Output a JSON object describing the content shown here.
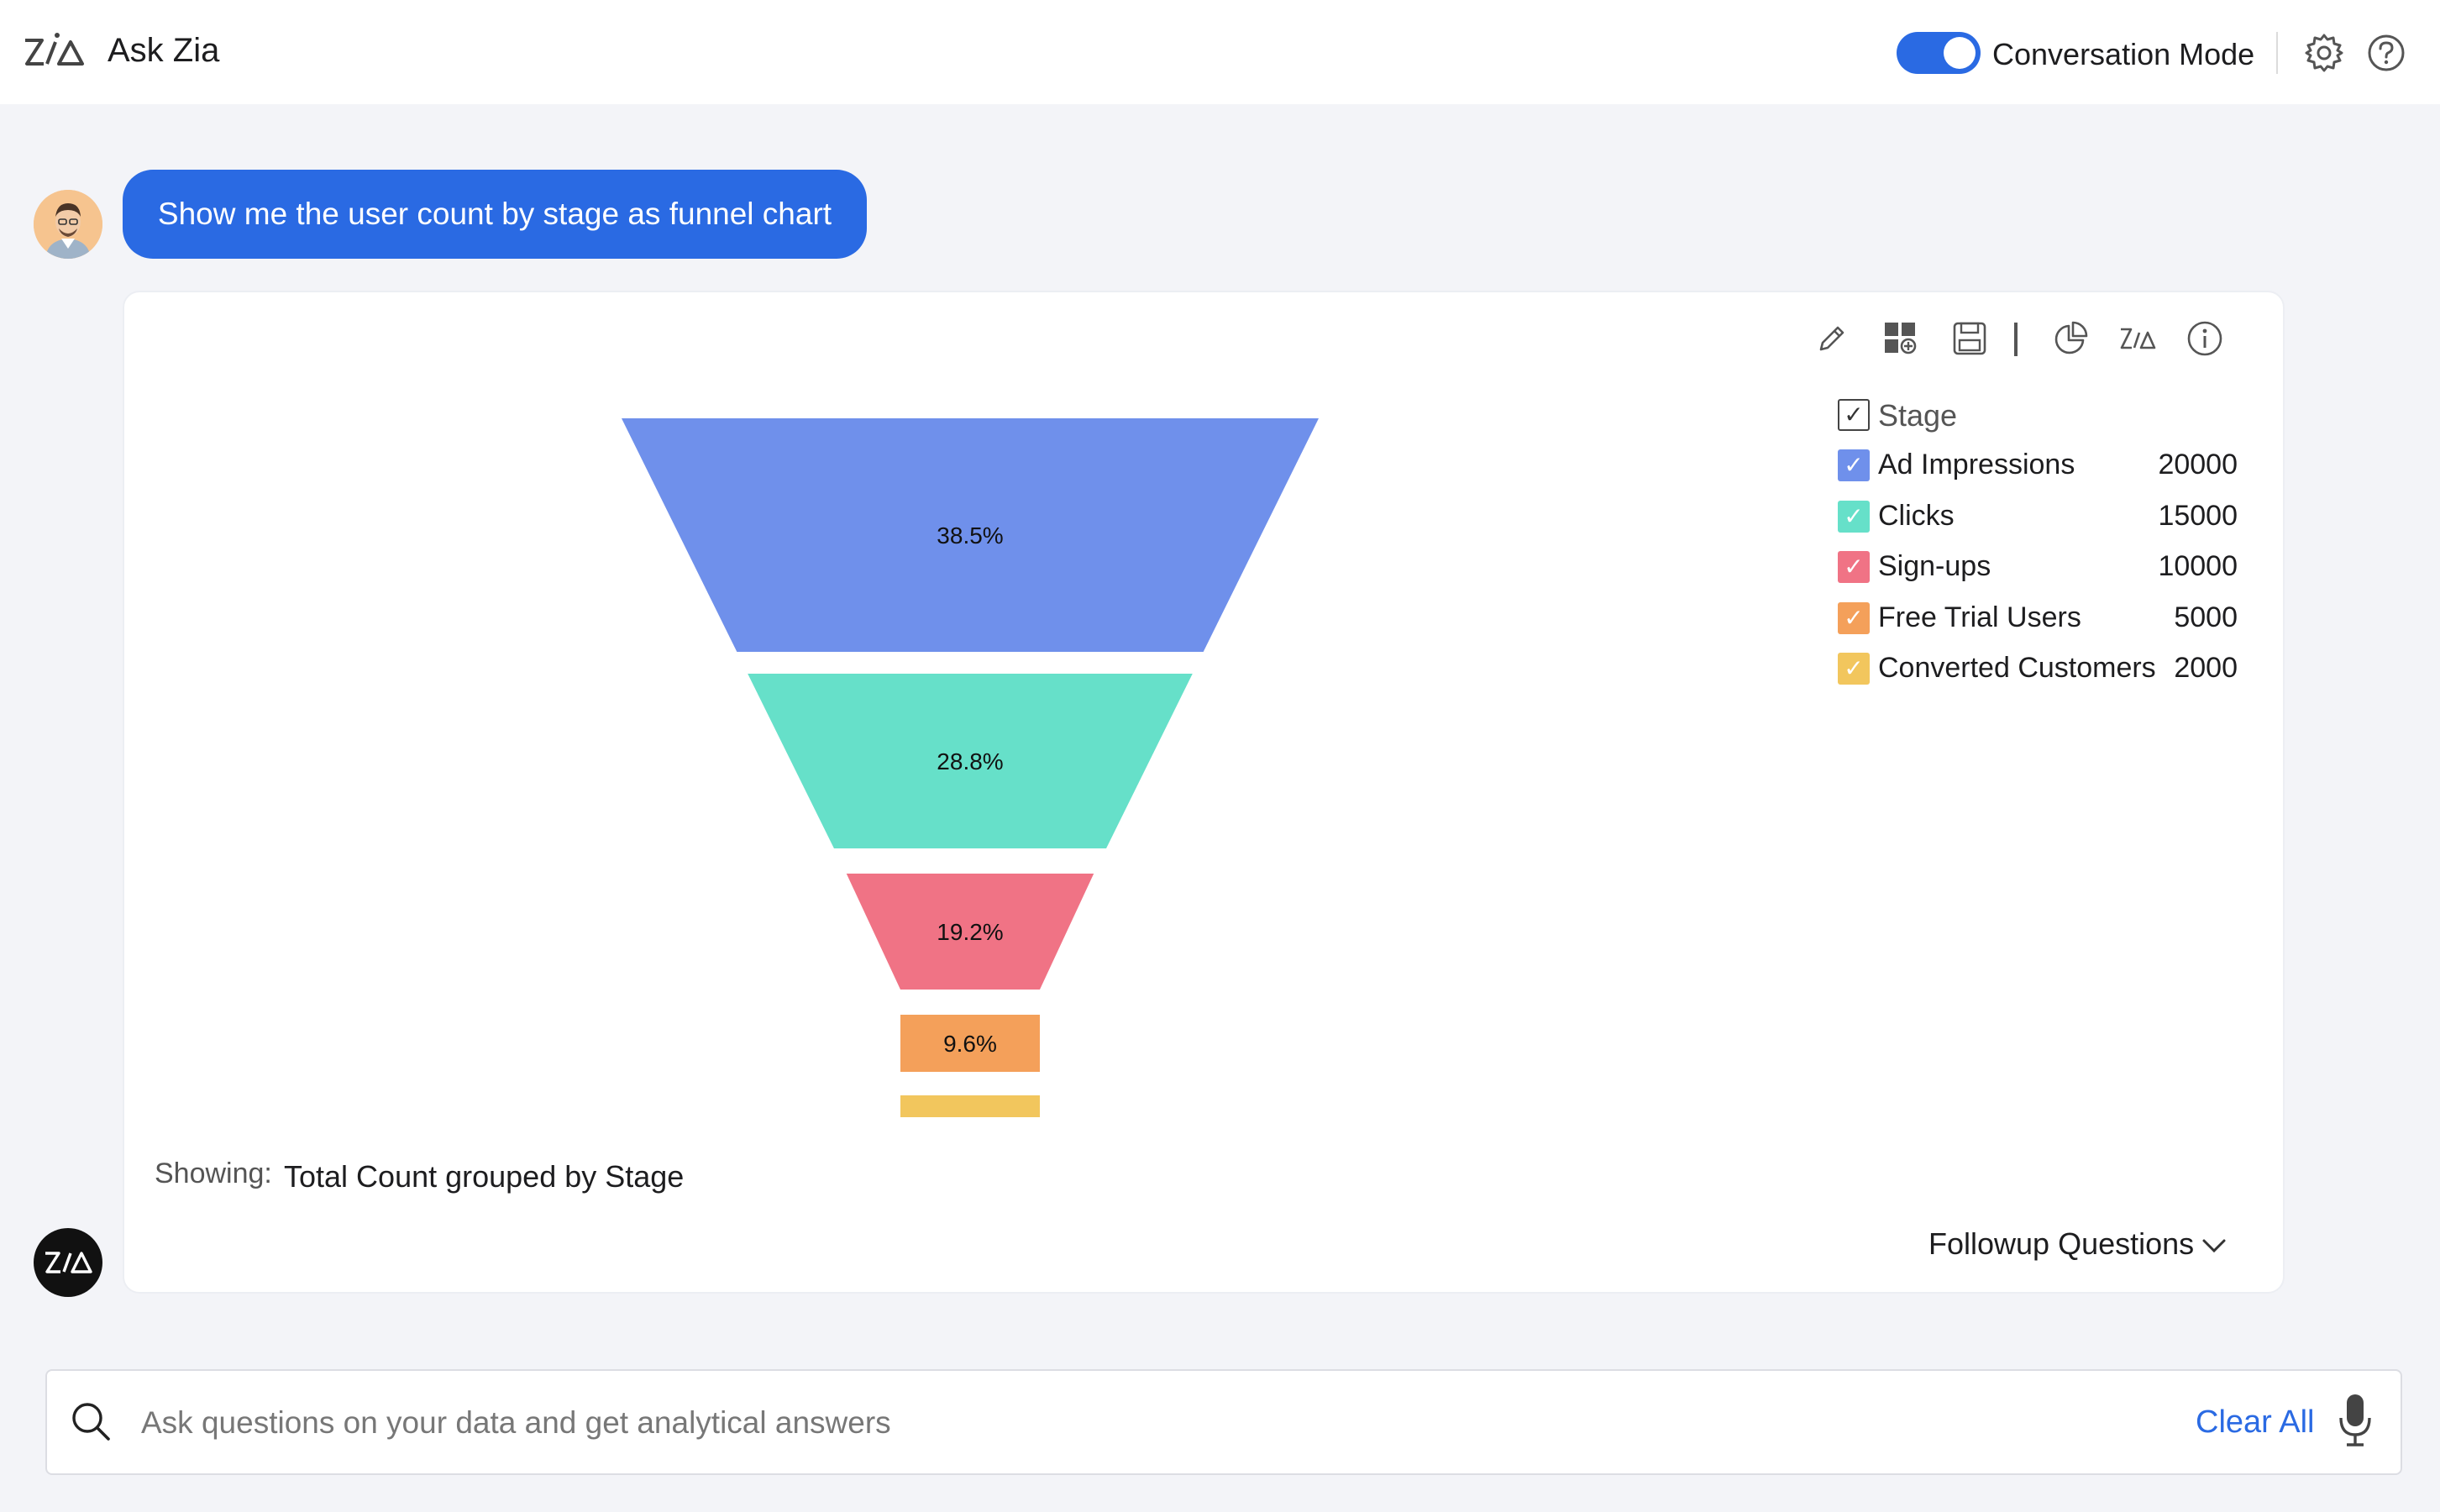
{
  "app": {
    "title": "Ask Zia",
    "logo_icon": "zia-logo-icon"
  },
  "header": {
    "conversation_mode_label": "Conversation Mode",
    "conversation_mode_on": true,
    "settings_icon": "gear-icon",
    "help_icon": "help-icon"
  },
  "chat": {
    "user_message": "Show me the user count by stage as funnel chart"
  },
  "response": {
    "toolbar": [
      "pencil-icon",
      "add-to-dashboard-icon",
      "save-icon",
      "chart-type-icon",
      "zia-icon",
      "info-icon"
    ],
    "showing_label": "Showing:",
    "showing_value": "Total Count grouped by Stage",
    "followup_label": "Followup Questions"
  },
  "chart_data": {
    "type": "funnel",
    "legend_title": "Stage",
    "categories": [
      "Ad Impressions",
      "Clicks",
      "Sign-ups",
      "Free Trial Users",
      "Converted Customers"
    ],
    "values": [
      20000,
      15000,
      10000,
      5000,
      2000
    ],
    "percent_labels": [
      "38.5%",
      "28.8%",
      "19.2%",
      "9.6%",
      ""
    ],
    "colors": [
      "#6f90eb",
      "#66e0c9",
      "#f07385",
      "#f4a05a",
      "#f2c65d"
    ],
    "legend_placement": "right"
  },
  "search": {
    "placeholder": "Ask questions on your data and get analytical answers",
    "value": "",
    "clear_label": "Clear All"
  }
}
